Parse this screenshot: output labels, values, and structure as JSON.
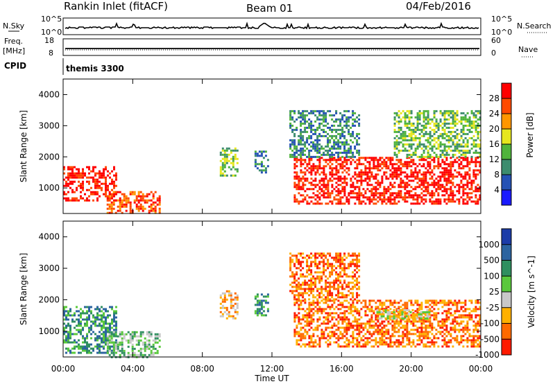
{
  "header": {
    "station": "Rankin Inlet (fitACF)",
    "beam": "Beam 01",
    "date": "04/Feb/2016"
  },
  "status_panels": {
    "nsky_label": "N.Sky",
    "nsearch_label": "N.Search",
    "nsky_ticks": [
      "10^5",
      "10^0"
    ],
    "nsearch_ticks": [
      "10^5",
      "10^0"
    ],
    "freq_label": "Freq.",
    "freq_unit": "[MHz]",
    "freq_ticks": [
      "18",
      "8"
    ],
    "nave_label": "Nave",
    "nave_ticks": [
      "60",
      "0"
    ],
    "cpid_label": "CPID",
    "cpid_value": "themis 3300"
  },
  "chart_data": [
    {
      "type": "heatmap",
      "title": "",
      "xlabel": "",
      "ylabel": "Slant Range [km]",
      "xlim": [
        "00:00",
        "24:00"
      ],
      "ylim": [
        180,
        4500
      ],
      "x_tick_labels": [
        "00:00",
        "04:00",
        "08:00",
        "12:00",
        "16:00",
        "20:00",
        "00:00"
      ],
      "y_tick_labels": [
        "1000",
        "2000",
        "3000",
        "4000"
      ],
      "y_ticks": [
        1000,
        2000,
        3000,
        4000
      ],
      "colorbar": {
        "label": "Power [dB]",
        "ticks": [
          "4",
          "8",
          "12",
          "16",
          "20",
          "24",
          "28"
        ],
        "colors": [
          "#1a1aff",
          "#2552b5",
          "#3c8c6e",
          "#50b43c",
          "#e6e61e",
          "#ff9600",
          "#ff4a00",
          "#ff0000"
        ]
      },
      "echo_regions": [
        {
          "t_start": "00:00",
          "t_end": "03:00",
          "range_min": 600,
          "range_max": 1700,
          "level": "28"
        },
        {
          "t_start": "02:30",
          "t_end": "05:30",
          "range_min": 200,
          "range_max": 900,
          "level": "24"
        },
        {
          "t_start": "09:00",
          "t_end": "10:00",
          "range_min": 1400,
          "range_max": 2300,
          "level": "12"
        },
        {
          "t_start": "11:00",
          "t_end": "11:45",
          "range_min": 1500,
          "range_max": 2200,
          "level": "8"
        },
        {
          "t_start": "13:15",
          "t_end": "24:00",
          "range_min": 500,
          "range_max": 2000,
          "level": "28"
        },
        {
          "t_start": "13:00",
          "t_end": "17:00",
          "range_min": 2000,
          "range_max": 3500,
          "level": "8"
        },
        {
          "t_start": "19:00",
          "t_end": "24:00",
          "range_min": 2000,
          "range_max": 3500,
          "level": "12"
        }
      ]
    },
    {
      "type": "heatmap",
      "title": "",
      "xlabel": "Time UT",
      "ylabel": "Slant Range [km]",
      "xlim": [
        "00:00",
        "24:00"
      ],
      "ylim": [
        180,
        4500
      ],
      "x_tick_labels": [
        "00:00",
        "04:00",
        "08:00",
        "12:00",
        "16:00",
        "20:00",
        "00:00"
      ],
      "y_tick_labels": [
        "1000",
        "2000",
        "3000",
        "4000"
      ],
      "y_ticks": [
        1000,
        2000,
        3000,
        4000
      ],
      "colorbar": {
        "label": "Velocity [m s^-1]",
        "ticks": [
          "1000",
          "500",
          "100",
          "25",
          "-25",
          "-100",
          "-500",
          "-1000"
        ],
        "colors": [
          "#1c3ca8",
          "#2c64a0",
          "#2f8f5f",
          "#5ac83c",
          "#c8c8c8",
          "#ffb000",
          "#ff6a00",
          "#ff1a00"
        ]
      },
      "echo_regions": [
        {
          "t_start": "00:00",
          "t_end": "03:00",
          "range_min": 300,
          "range_max": 1800,
          "level": "100"
        },
        {
          "t_start": "02:30",
          "t_end": "05:30",
          "range_min": 200,
          "range_max": 1000,
          "level": "25"
        },
        {
          "t_start": "09:00",
          "t_end": "10:00",
          "range_min": 1400,
          "range_max": 2300,
          "level": "-100"
        },
        {
          "t_start": "11:00",
          "t_end": "11:45",
          "range_min": 1500,
          "range_max": 2200,
          "level": "100"
        },
        {
          "t_start": "13:15",
          "t_end": "24:00",
          "range_min": 500,
          "range_max": 2000,
          "level": "-500"
        },
        {
          "t_start": "18:00",
          "t_end": "21:00",
          "range_min": 1400,
          "range_max": 1700,
          "level": "-25"
        },
        {
          "t_start": "13:00",
          "t_end": "17:00",
          "range_min": 2000,
          "range_max": 3500,
          "level": "-500"
        }
      ]
    }
  ]
}
